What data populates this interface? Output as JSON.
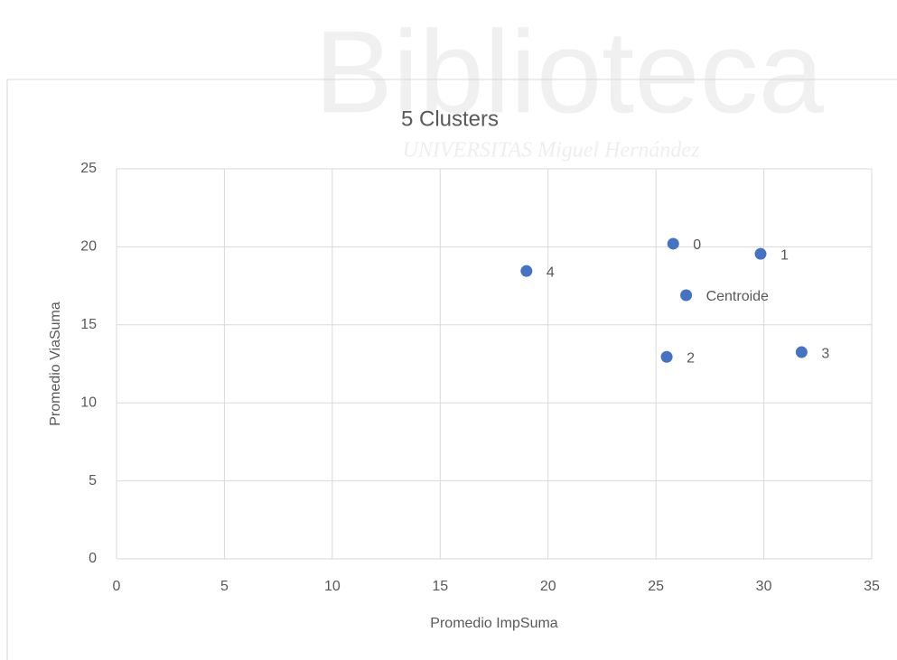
{
  "watermark": {
    "title": "Biblioteca",
    "subtitle": "UNIVERSITAS Miguel Hernández"
  },
  "chart_data": {
    "type": "scatter",
    "title": "5 Clusters",
    "x_label": "Promedio ImpSuma",
    "y_label": "Promedio ViaSuma",
    "x": [
      25.8,
      29.85,
      19.0,
      26.4,
      25.5,
      31.75
    ],
    "values": [
      20.2,
      19.55,
      18.45,
      16.9,
      12.95,
      13.25
    ],
    "point_labels": [
      "0",
      "1",
      "4",
      "Centroide",
      "2",
      "3"
    ],
    "color": "#4472c4",
    "xlim": [
      0,
      35
    ],
    "xticks": [
      0,
      5,
      10,
      15,
      20,
      25,
      30,
      35
    ],
    "ylim": [
      0,
      25
    ],
    "yticks": [
      0,
      5,
      10,
      15,
      20,
      25
    ],
    "grid": true
  }
}
